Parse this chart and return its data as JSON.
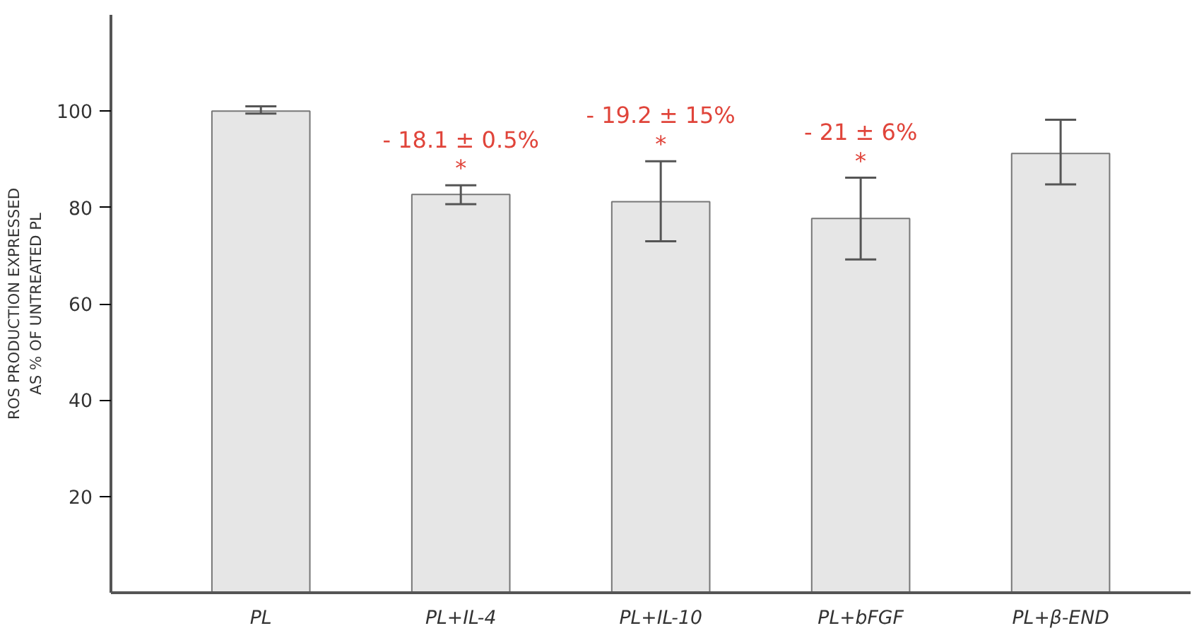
{
  "chart_data": {
    "type": "bar",
    "ylabel": "ROS PRODUCTION EXPRESSED\nAS % OF UNTREATED PL",
    "categories": [
      "PL",
      "PL+IL-4",
      "PL+IL-10",
      "PL+bFGF",
      "PL+β-END"
    ],
    "values": [
      100,
      82.7,
      81.2,
      77.7,
      91.2
    ],
    "errors": [
      [
        99.5,
        101
      ],
      [
        80.7,
        84.6
      ],
      [
        73.0,
        89.6
      ],
      [
        69.2,
        86.2
      ],
      [
        84.8,
        98.2
      ]
    ],
    "color": "#e6e6e6",
    "ylim": [
      0,
      120
    ],
    "yticks": [
      20,
      40,
      60,
      80,
      100
    ],
    "grid": false,
    "annotations": [
      "- 18.1 ± 0.5%",
      "*",
      "- 19.2 ± 15%",
      "*",
      "- 21 ± 6%",
      "*"
    ]
  }
}
